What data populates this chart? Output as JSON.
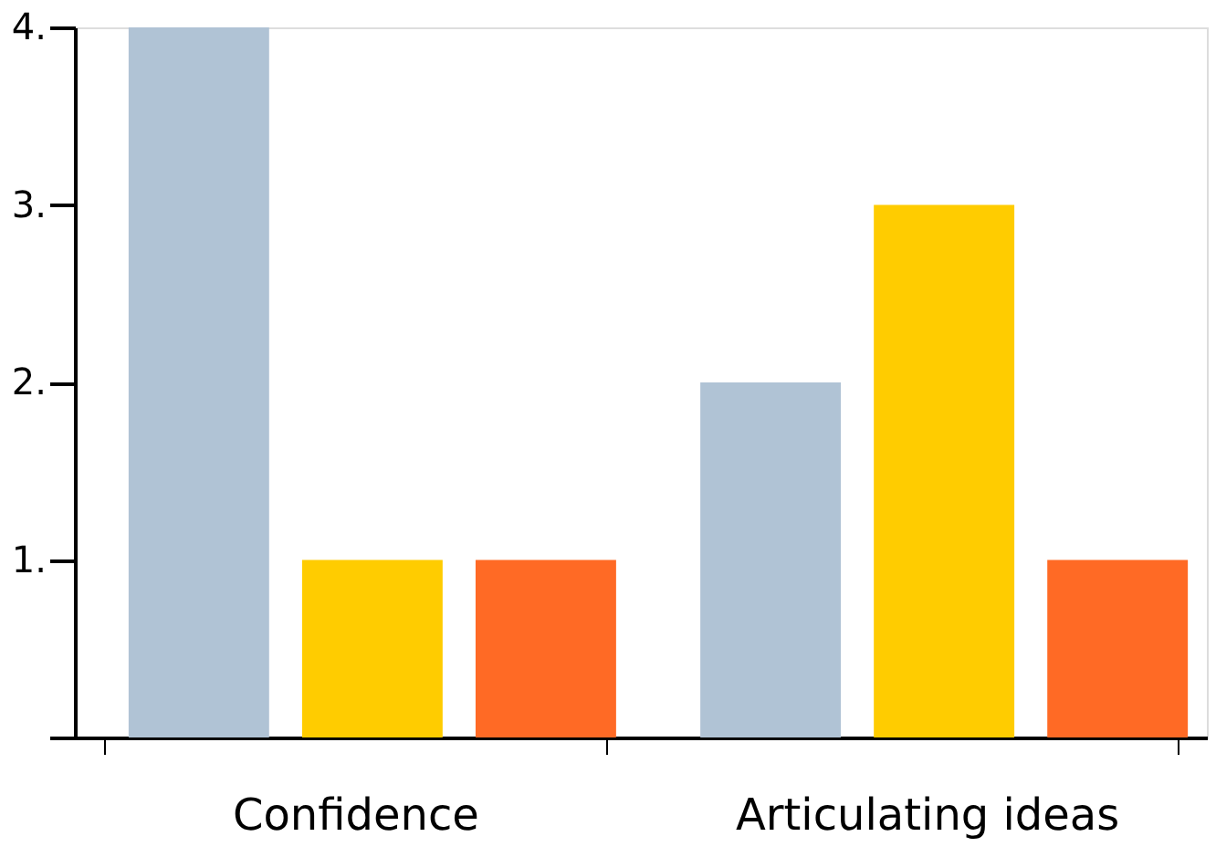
{
  "chart_data": {
    "type": "bar",
    "categories": [
      "Confidence",
      "Articulating ideas"
    ],
    "series": [
      {
        "color": "#b0c3d5",
        "values": [
          4,
          2
        ]
      },
      {
        "color": "#ffcc00",
        "values": [
          1,
          3
        ]
      },
      {
        "color": "#ff6a25",
        "values": [
          1,
          1
        ]
      }
    ],
    "ylim": [
      0,
      4
    ],
    "yticks": [
      {
        "value": 0,
        "label": null
      },
      {
        "value": 1,
        "label": "1."
      },
      {
        "value": 2,
        "label": "2."
      },
      {
        "value": 3,
        "label": "3."
      },
      {
        "value": 4,
        "label": "4."
      }
    ],
    "grid": false,
    "legend": false
  }
}
